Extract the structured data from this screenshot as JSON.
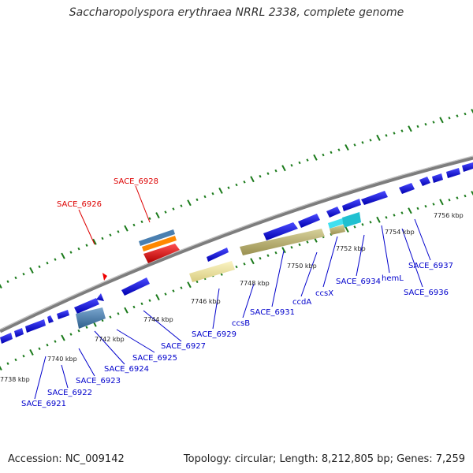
{
  "title": "Saccharopolyspora erythraea NRRL 2338, complete genome",
  "footer": {
    "accession": "Accession: NC_009142",
    "summary": "Topology: circular; Length: 8,212,805 bp; Genes: 7,259"
  },
  "kbp_labels": [
    "7738 kbp",
    "7740 kbp",
    "7742 kbp",
    "7744 kbp",
    "7746 kbp",
    "7748 kbp",
    "7750 kbp",
    "7752 kbp",
    "7754 kbp",
    "7756 kbp"
  ],
  "gene_labels": [
    {
      "name": "SACE_6921",
      "color": "#0000cc"
    },
    {
      "name": "SACE_6922",
      "color": "#0000cc"
    },
    {
      "name": "SACE_6923",
      "color": "#0000cc"
    },
    {
      "name": "SACE_6924",
      "color": "#0000cc"
    },
    {
      "name": "SACE_6925",
      "color": "#0000cc"
    },
    {
      "name": "SACE_6927",
      "color": "#0000cc"
    },
    {
      "name": "SACE_6929",
      "color": "#0000cc"
    },
    {
      "name": "ccsB",
      "color": "#0000cc"
    },
    {
      "name": "SACE_6931",
      "color": "#0000cc"
    },
    {
      "name": "ccdA",
      "color": "#0000cc"
    },
    {
      "name": "ccsX",
      "color": "#0000cc"
    },
    {
      "name": "SACE_6934",
      "color": "#0000cc"
    },
    {
      "name": "hemL",
      "color": "#0000cc"
    },
    {
      "name": "SACE_6936",
      "color": "#0000cc"
    },
    {
      "name": "SACE_6937",
      "color": "#0000cc"
    },
    {
      "name": "SACE_6926",
      "color": "#dd0000"
    },
    {
      "name": "SACE_6928",
      "color": "#dd0000"
    }
  ],
  "colors": {
    "backbone": "#888888",
    "tick": "#1a7a1a",
    "gene_blue": "#0000ee",
    "gene_tan": "#b8b070",
    "gene_yellow": "#f0e6a0",
    "gene_steel": "#4a7fb0",
    "gene_cyan": "#20c0d0",
    "gene_red": "#ee0000",
    "gene_orange": "#ff8800"
  }
}
